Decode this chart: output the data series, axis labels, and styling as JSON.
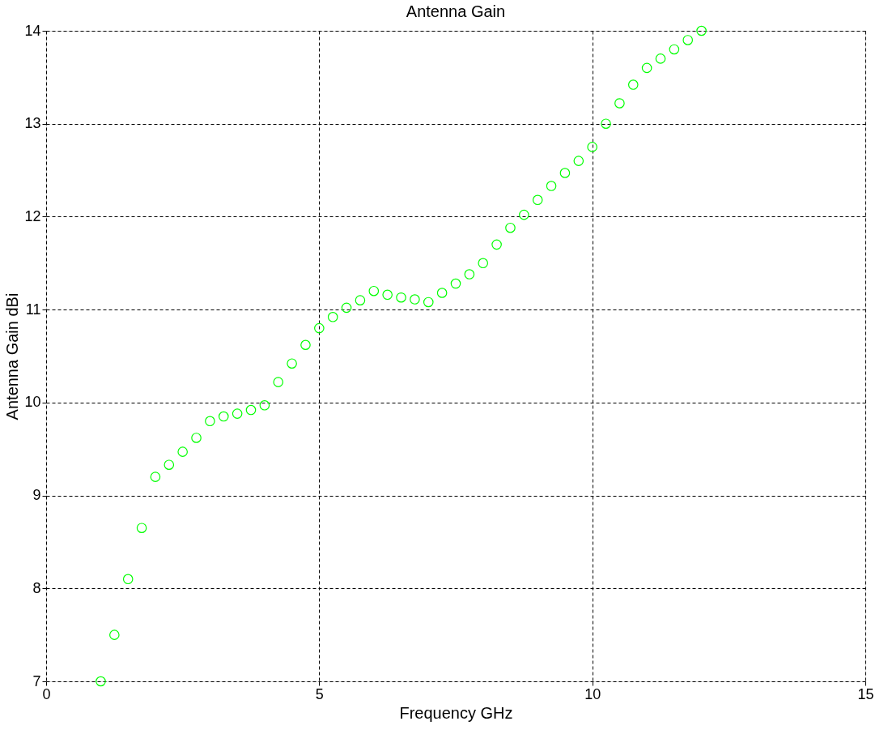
{
  "chart_data": {
    "type": "scatter",
    "title": "Antenna Gain",
    "xlabel": "Frequency GHz",
    "ylabel": "Antenna Gain dBi",
    "xlim": [
      0,
      15
    ],
    "xticks": [
      0,
      5,
      10,
      15
    ],
    "ylim": [
      7,
      14
    ],
    "yticks": [
      7,
      8,
      9,
      10,
      11,
      12,
      13,
      14
    ],
    "grid": true,
    "marker": "circle",
    "series": [
      {
        "color": "#00ff00",
        "x": [
          1.0,
          1.25,
          1.5,
          1.75,
          2.0,
          2.25,
          2.5,
          2.75,
          3.0,
          3.25,
          3.5,
          3.75,
          4.0,
          4.25,
          4.5,
          4.75,
          5.0,
          5.25,
          5.5,
          5.75,
          6.0,
          6.25,
          6.5,
          6.75,
          7.0,
          7.25,
          7.5,
          7.75,
          8.0,
          8.25,
          8.5,
          8.75,
          9.0,
          9.25,
          9.5,
          9.75,
          10.0,
          10.25,
          10.5,
          10.75,
          11.0,
          11.25,
          11.5,
          11.75,
          12.0
        ],
        "values": [
          7.0,
          7.5,
          8.1,
          8.65,
          9.2,
          9.33,
          9.47,
          9.62,
          9.8,
          9.85,
          9.88,
          9.92,
          9.97,
          10.22,
          10.42,
          10.62,
          10.8,
          10.92,
          11.02,
          11.1,
          11.2,
          11.16,
          11.13,
          11.11,
          11.08,
          11.18,
          11.28,
          11.38,
          11.5,
          11.7,
          11.88,
          12.02,
          12.18,
          12.33,
          12.47,
          12.6,
          12.75,
          13.0,
          13.22,
          13.42,
          13.6,
          13.7,
          13.8,
          13.9,
          14.0
        ]
      }
    ]
  }
}
